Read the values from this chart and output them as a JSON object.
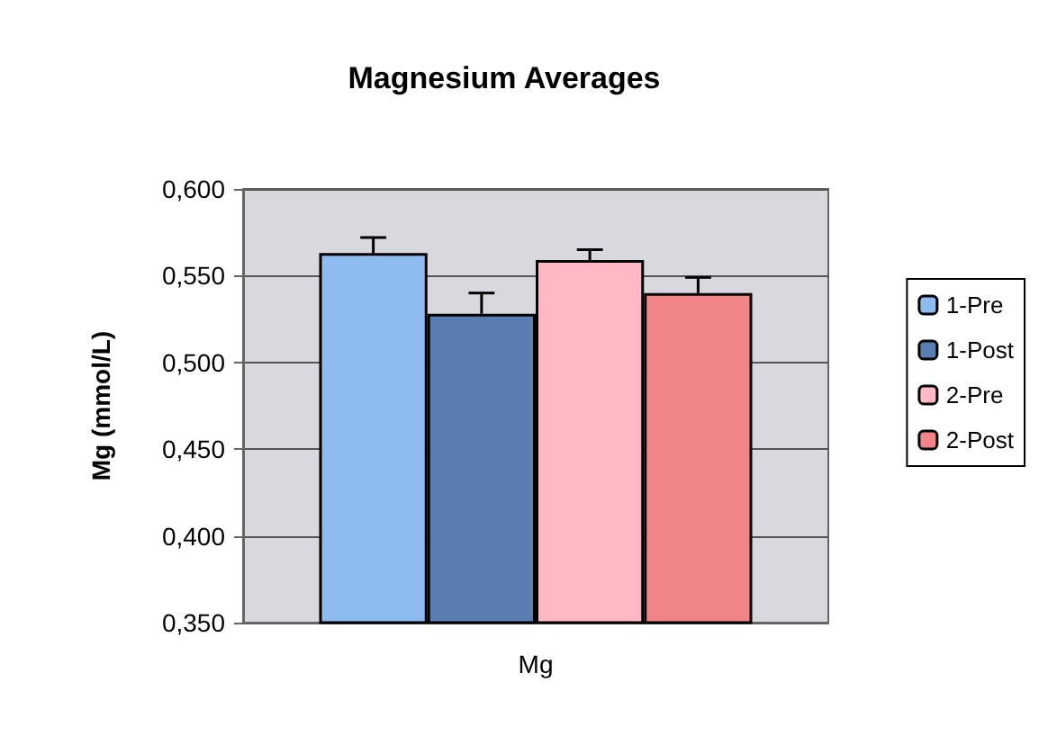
{
  "chart_data": {
    "type": "bar",
    "title": "Magnesium Averages",
    "ylabel": "Mg (mmol/L)",
    "categories": [
      "Mg"
    ],
    "series": [
      {
        "name": "1-Pre",
        "color": "#8fbcf0",
        "values": [
          0.563
        ],
        "errors": [
          [
            0.563,
            0.572
          ]
        ]
      },
      {
        "name": "1-Post",
        "color": "#5a7db2",
        "values": [
          0.528
        ],
        "errors": [
          [
            0.528,
            0.54
          ]
        ]
      },
      {
        "name": "2-Pre",
        "color": "#ffb8c4",
        "values": [
          0.559
        ],
        "errors": [
          [
            0.559,
            0.565
          ]
        ]
      },
      {
        "name": "2-Post",
        "color": "#f08486",
        "values": [
          0.54
        ],
        "errors": [
          [
            0.54,
            0.549
          ]
        ]
      }
    ],
    "ylim": [
      0.35,
      0.6
    ],
    "yticks": [
      {
        "value": 0.35,
        "label": "0,350"
      },
      {
        "value": 0.4,
        "label": "0,400"
      },
      {
        "value": 0.45,
        "label": "0,450"
      },
      {
        "value": 0.5,
        "label": "0,500"
      },
      {
        "value": 0.55,
        "label": "0,550"
      },
      {
        "value": 0.6,
        "label": "0,600"
      }
    ],
    "grid": "y",
    "legend": "right"
  }
}
